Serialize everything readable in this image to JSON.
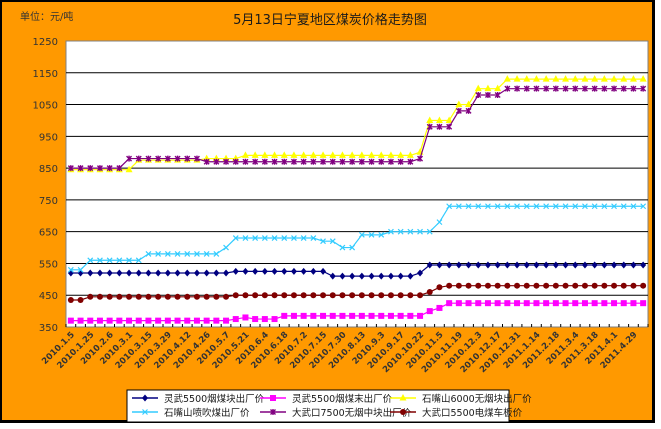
{
  "chart_data": {
    "type": "line",
    "title": "5月13日宁夏地区煤炭价格走势图",
    "unit_label": "单位：元/吨",
    "xlabel": "",
    "ylabel": "",
    "ylim": [
      350,
      1250
    ],
    "yticks": [
      350,
      450,
      550,
      650,
      750,
      850,
      950,
      1050,
      1150,
      1250
    ],
    "grid": "horizontal",
    "legend_position": "bottom",
    "x_tick_labels": [
      "2010.1.5",
      "2010.1.25",
      "2010.2.6",
      "2010.3.1",
      "2010.3.15",
      "2010.3.29",
      "2010.4.12",
      "2010.4.26",
      "2010.5.7",
      "2010.5.21",
      "2010.6.4",
      "2010.6.18",
      "2010.7.2",
      "2010.7.15",
      "2010.7.30",
      "2010.8.13",
      "2010.9.3",
      "2010.9.17",
      "2010.10.22",
      "2010.11.5",
      "2010.11.19",
      "2010.12.3",
      "2010.12.17",
      "2010.12.31",
      "2011.1.14",
      "2011.2.18",
      "2011.3.4",
      "2011.3.18",
      "2011.4.1",
      "2011.4.29"
    ],
    "point_count": 60,
    "series": [
      {
        "name": "灵武5500烟煤块出厂价",
        "color": "#000080",
        "marker": "diamond",
        "values": [
          520,
          520,
          520,
          520,
          520,
          520,
          520,
          520,
          520,
          520,
          520,
          520,
          520,
          520,
          520,
          520,
          520,
          525,
          525,
          525,
          525,
          525,
          525,
          525,
          525,
          525,
          525,
          510,
          510,
          510,
          510,
          510,
          510,
          510,
          510,
          510,
          520,
          545,
          545,
          545,
          545,
          545,
          545,
          545,
          545,
          545,
          545,
          545,
          545,
          545,
          545,
          545,
          545,
          545,
          545,
          545,
          545,
          545,
          545,
          545
        ]
      },
      {
        "name": "灵武5500烟煤末出厂价",
        "color": "#ff00ff",
        "marker": "square",
        "values": [
          370,
          370,
          370,
          370,
          370,
          370,
          370,
          370,
          370,
          370,
          370,
          370,
          370,
          370,
          370,
          370,
          370,
          375,
          380,
          375,
          375,
          375,
          385,
          385,
          385,
          385,
          385,
          385,
          385,
          385,
          385,
          385,
          385,
          385,
          385,
          385,
          385,
          400,
          410,
          425,
          425,
          425,
          425,
          425,
          425,
          425,
          425,
          425,
          425,
          425,
          425,
          425,
          425,
          425,
          425,
          425,
          425,
          425,
          425,
          425
        ]
      },
      {
        "name": "石嘴山6000无烟块出厂价",
        "color": "#ffff00",
        "marker": "triangle",
        "values": [
          845,
          845,
          845,
          845,
          845,
          845,
          845,
          875,
          875,
          875,
          875,
          875,
          875,
          875,
          880,
          880,
          880,
          880,
          890,
          890,
          890,
          890,
          890,
          890,
          890,
          890,
          890,
          890,
          890,
          890,
          890,
          890,
          890,
          890,
          890,
          890,
          900,
          1000,
          1000,
          1000,
          1050,
          1050,
          1100,
          1100,
          1100,
          1130,
          1130,
          1130,
          1130,
          1130,
          1130,
          1130,
          1130,
          1130,
          1130,
          1130,
          1130,
          1130,
          1130,
          1130
        ]
      },
      {
        "name": "石嘴山喷吹煤出厂价",
        "color": "#33ccff",
        "marker": "x",
        "values": [
          530,
          530,
          560,
          560,
          560,
          560,
          560,
          560,
          580,
          580,
          580,
          580,
          580,
          580,
          580,
          580,
          600,
          630,
          630,
          630,
          630,
          630,
          630,
          630,
          630,
          630,
          620,
          620,
          600,
          600,
          640,
          640,
          640,
          650,
          650,
          650,
          650,
          650,
          680,
          730,
          730,
          730,
          730,
          730,
          730,
          730,
          730,
          730,
          730,
          730,
          730,
          730,
          730,
          730,
          730,
          730,
          730,
          730,
          730,
          730
        ]
      },
      {
        "name": "大武口7500无烟中块出厂价",
        "color": "#800080",
        "marker": "star",
        "values": [
          850,
          850,
          850,
          850,
          850,
          850,
          880,
          880,
          880,
          880,
          880,
          880,
          880,
          880,
          870,
          870,
          870,
          870,
          870,
          870,
          870,
          870,
          870,
          870,
          870,
          870,
          870,
          870,
          870,
          870,
          870,
          870,
          870,
          870,
          870,
          870,
          880,
          980,
          980,
          980,
          1030,
          1030,
          1080,
          1080,
          1080,
          1100,
          1100,
          1100,
          1100,
          1100,
          1100,
          1100,
          1100,
          1100,
          1100,
          1100,
          1100,
          1100,
          1100,
          1100
        ]
      },
      {
        "name": "大武口5500电煤车板价",
        "color": "#800000",
        "marker": "circle",
        "values": [
          435,
          435,
          445,
          445,
          445,
          445,
          445,
          445,
          445,
          445,
          445,
          445,
          445,
          445,
          445,
          445,
          445,
          450,
          450,
          450,
          450,
          450,
          450,
          450,
          450,
          450,
          450,
          450,
          450,
          450,
          450,
          450,
          450,
          450,
          450,
          450,
          450,
          460,
          475,
          480,
          480,
          480,
          480,
          480,
          480,
          480,
          480,
          480,
          480,
          480,
          480,
          480,
          480,
          480,
          480,
          480,
          480,
          480,
          480,
          480
        ]
      }
    ]
  }
}
